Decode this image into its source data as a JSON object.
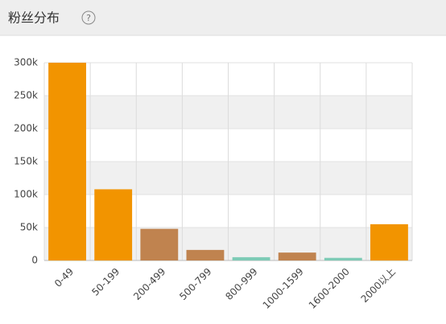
{
  "help_icon": "?",
  "chart_data": {
    "type": "bar",
    "title": "粉丝分布",
    "categories": [
      "0-49",
      "50-199",
      "200-499",
      "500-799",
      "800-999",
      "1000-1599",
      "1600-2000",
      "2000以上"
    ],
    "values": [
      300000,
      108000,
      48000,
      16000,
      5000,
      12000,
      4000,
      55000
    ],
    "colors": [
      "#f29400",
      "#f29400",
      "#c0834f",
      "#c0834f",
      "#7ecbb6",
      "#c0834f",
      "#7ecbb6",
      "#f29400"
    ],
    "ylim": [
      0,
      300000
    ],
    "yticks": [
      0,
      {
        "value": 50000,
        "label": "50k"
      },
      {
        "value": 100000,
        "label": "100k"
      },
      {
        "value": 150000,
        "label": "150k"
      },
      {
        "value": 200000,
        "label": "200k"
      },
      {
        "value": 250000,
        "label": "250k"
      },
      {
        "value": 300000,
        "label": "300k"
      }
    ],
    "grid": true
  }
}
